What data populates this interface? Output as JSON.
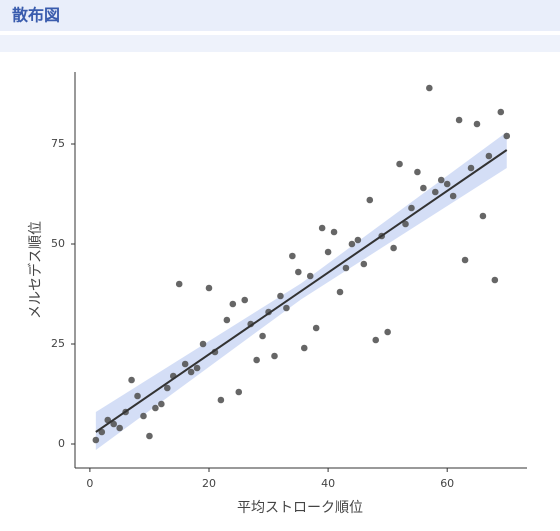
{
  "header": {
    "title": "散布図"
  },
  "chart_data": {
    "type": "scatter",
    "xlabel": "平均ストローク順位",
    "ylabel": "メルセデス順位",
    "x": [
      1,
      2,
      3,
      4,
      5,
      6,
      7,
      8,
      9,
      10,
      11,
      12,
      13,
      14,
      15,
      16,
      17,
      18,
      19,
      20,
      21,
      22,
      23,
      24,
      25,
      26,
      27,
      28,
      29,
      30,
      31,
      32,
      33,
      34,
      35,
      36,
      37,
      38,
      39,
      40,
      41,
      42,
      43,
      44,
      45,
      46,
      47,
      48,
      49,
      50,
      51,
      52,
      53,
      54,
      55,
      56,
      57,
      58,
      59,
      60,
      61,
      62,
      63,
      64,
      65,
      66,
      67,
      68,
      69,
      70
    ],
    "values": [
      1,
      3,
      6,
      5,
      4,
      8,
      16,
      12,
      7,
      2,
      9,
      10,
      14,
      17,
      40,
      20,
      18,
      19,
      25,
      39,
      23,
      11,
      31,
      35,
      13,
      36,
      30,
      21,
      27,
      33,
      22,
      37,
      34,
      47,
      43,
      24,
      42,
      29,
      54,
      48,
      53,
      38,
      44,
      50,
      51,
      45,
      61,
      26,
      52,
      28,
      49,
      70,
      55,
      59,
      68,
      64,
      89,
      63,
      66,
      65,
      62,
      81,
      46,
      69,
      80,
      57,
      72,
      41,
      83,
      77
    ],
    "color": "#555555",
    "trend_line": {
      "x": [
        1,
        70
      ],
      "values": [
        3,
        73.5
      ],
      "color": "#333333"
    },
    "band": {
      "x": [
        1,
        35.5,
        70
      ],
      "lower": [
        -1.5,
        36.2,
        69
      ],
      "upper": [
        8,
        40.2,
        78
      ],
      "color": "#c5d3f3"
    },
    "xlim": [
      -2.5,
      73.4
    ],
    "ylim": [
      -6,
      93
    ],
    "xticks": [
      0,
      20,
      40,
      60
    ],
    "yticks": [
      0,
      25,
      50,
      75
    ]
  }
}
